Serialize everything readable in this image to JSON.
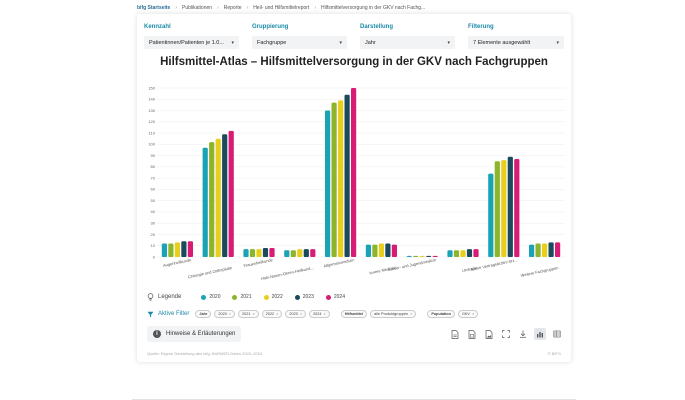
{
  "breadcrumb": {
    "home": "bifg Startseite",
    "items": [
      "Publikationen",
      "Reporte",
      "Heil- und Hilfsmittelreport",
      "Hilfsmittelversorgung in der GKV nach Fachg..."
    ]
  },
  "controls": {
    "kennzahl": {
      "label": "Kennzahl",
      "value": "Patientinnen/Patienten je 1.0..."
    },
    "gruppierung": {
      "label": "Gruppierung",
      "value": "Fachgruppe"
    },
    "darstellung": {
      "label": "Darstellung",
      "value": "Jahr"
    },
    "filterung": {
      "label": "Filterung",
      "value": "7 Elemente ausgewählt"
    }
  },
  "title": "Hilfsmittel-Atlas – Hilfsmittelversorgung in der GKV nach Fachgruppen",
  "chart_data": {
    "type": "bar",
    "title": "Hilfsmittel-Atlas – Hilfsmittelversorgung in der GKV nach Fachgruppen",
    "categories": [
      "Augenheilkunde",
      "Chirurgie und Orthopädie",
      "Frauenheilkunde",
      "Hals-Nasen-Ohren-Heilkund...",
      "Allgemeinmedizin",
      "Innere Medizin",
      "Kinder- und Jugendmedizin",
      "Urologie",
      "Keine Vertragsärztin/-ärz...",
      "Weitere Fachgruppen"
    ],
    "series": [
      {
        "name": "2020",
        "values": [
          12,
          97,
          7,
          6,
          130,
          11,
          1,
          6,
          74,
          11
        ]
      },
      {
        "name": "2021",
        "values": [
          12,
          102,
          7,
          6,
          137,
          11,
          1,
          6,
          85,
          12
        ]
      },
      {
        "name": "2022",
        "values": [
          13,
          105,
          7,
          7,
          139,
          12,
          1,
          6,
          86,
          12
        ]
      },
      {
        "name": "2023",
        "values": [
          14,
          109,
          8,
          7,
          144,
          12,
          1,
          7,
          89,
          13
        ]
      },
      {
        "name": "2024",
        "values": [
          14,
          112,
          8,
          7,
          150,
          11,
          1,
          7,
          87,
          13
        ]
      }
    ],
    "yticks": [
      0,
      10,
      20,
      30,
      40,
      50,
      60,
      70,
      80,
      90,
      100,
      110,
      120,
      130,
      140,
      150
    ],
    "ylim": [
      0,
      150
    ],
    "xlabel": "",
    "ylabel": "",
    "grid": true,
    "legend_position": "bottom-left",
    "colors": [
      "#1aa2b5",
      "#8db52b",
      "#e8cf1e",
      "#1a4a5c",
      "#d81b75"
    ]
  },
  "legend": {
    "label": "Legende"
  },
  "filters": {
    "label": "Aktive Filter",
    "groups": [
      {
        "key": "Jahr",
        "values": [
          "2020",
          "2021",
          "2022",
          "2023",
          "2024"
        ]
      },
      {
        "key": "Hilfsmittel",
        "values": [
          "alle Produktgruppen"
        ]
      },
      {
        "key": "Population",
        "values": [
          "GKV"
        ]
      }
    ]
  },
  "notes": {
    "label": "Hinweise & Erläuterungen"
  },
  "source": "Quelle: Eigene Darstellung des bifg, BARMER-Daten 2020–2024",
  "source_right": "© BIFG"
}
